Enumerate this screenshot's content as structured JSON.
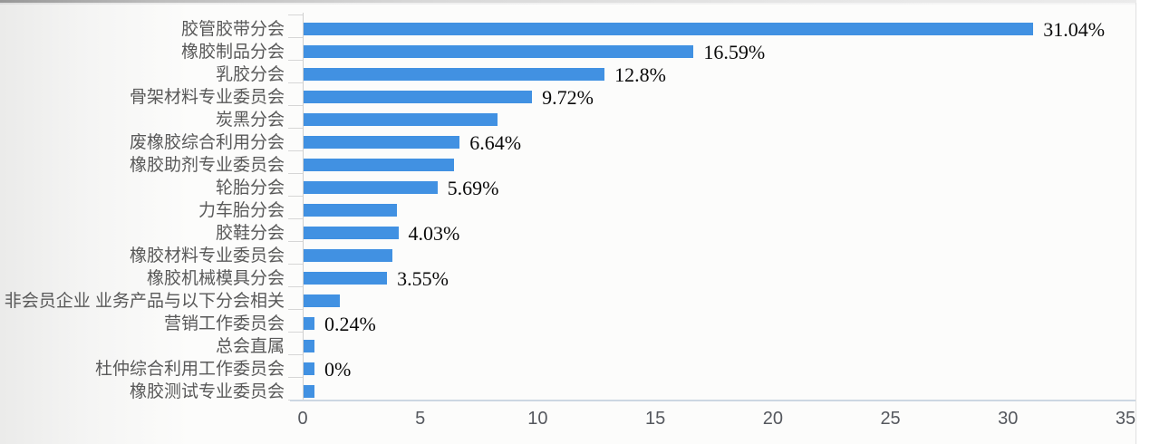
{
  "chart_data": {
    "type": "bar",
    "orientation": "horizontal",
    "title": "",
    "xlabel": "",
    "ylabel": "",
    "xlim": [
      0,
      35
    ],
    "x_ticks": [
      "0",
      "5",
      "10",
      "15",
      "20",
      "25",
      "30",
      "35"
    ],
    "grid": false,
    "legend": "none",
    "categories": [
      "胶管胶带分会",
      "橡胶制品分会",
      "乳胶分会",
      "骨架材料专业委员会",
      "炭黑分会",
      "废橡胶综合利用分会",
      "橡胶助剂专业委员会",
      "轮胎分会",
      "力车胎分会",
      "胶鞋分会",
      "橡胶材料专业委员会",
      "橡胶机械模具分会",
      "非会员企业 业务产品与以下分会相关",
      "营销工作委员会",
      "总会直属",
      "杜仲综合利用工作委员会",
      "橡胶测试专业委员会"
    ],
    "values": [
      31.04,
      16.59,
      12.8,
      9.72,
      8.24,
      6.64,
      6.4,
      5.69,
      3.97,
      4.03,
      3.79,
      3.55,
      1.56,
      0.24,
      0.2,
      0,
      0.2
    ],
    "data_labels": [
      "31.04%",
      "16.59%",
      "12.8%",
      "9.72%",
      "",
      "6.64%",
      "",
      "5.69%",
      "",
      "4.03%",
      "",
      "3.55%",
      "",
      "0.24%",
      "",
      "0%",
      ""
    ]
  },
  "colors": {
    "bar": "#4191E2",
    "category_label": "#595959",
    "x_tick_label": "#55585e",
    "data_label": "#0a0a0a",
    "axis_line": "#ccd7e2",
    "tick_line": "#d6d6d6",
    "card_background": "#fcfcfb"
  }
}
